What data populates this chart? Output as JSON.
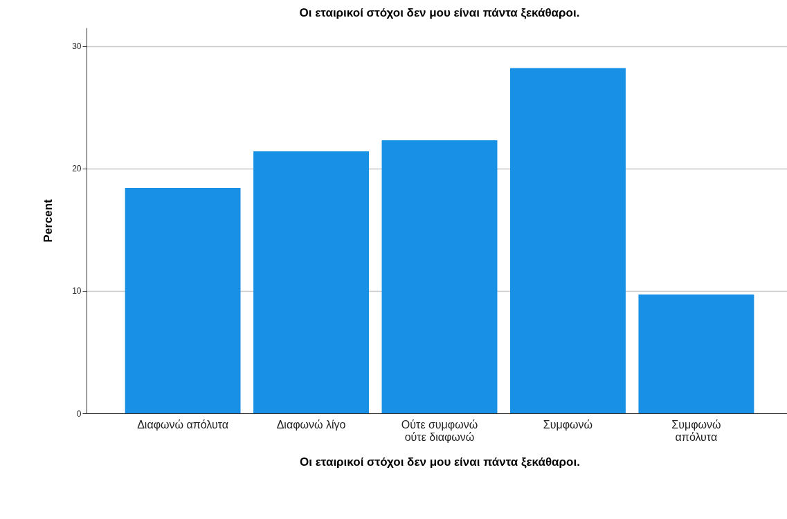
{
  "chart_data": {
    "type": "bar",
    "title": "Οι εταιρικοί στόχοι δεν μου είναι πάντα ξεκάθαροι.",
    "xlabel": "Οι εταιρικοί στόχοι δεν μου είναι πάντα ξεκάθαροι.",
    "ylabel": "Percent",
    "categories": [
      "Διαφωνώ απόλυτα",
      "Διαφωνώ λίγο",
      "Ούτε συμφωνώ\nούτε διαφωνώ",
      "Συμφωνώ",
      "Συμφωνώ\nαπόλυτα"
    ],
    "values": [
      18.4,
      21.4,
      22.3,
      28.2,
      9.7
    ],
    "color": "#1790e6",
    "ylim": [
      0,
      31.5
    ],
    "yticks": [
      0,
      10,
      20,
      30
    ],
    "grid": "y"
  }
}
